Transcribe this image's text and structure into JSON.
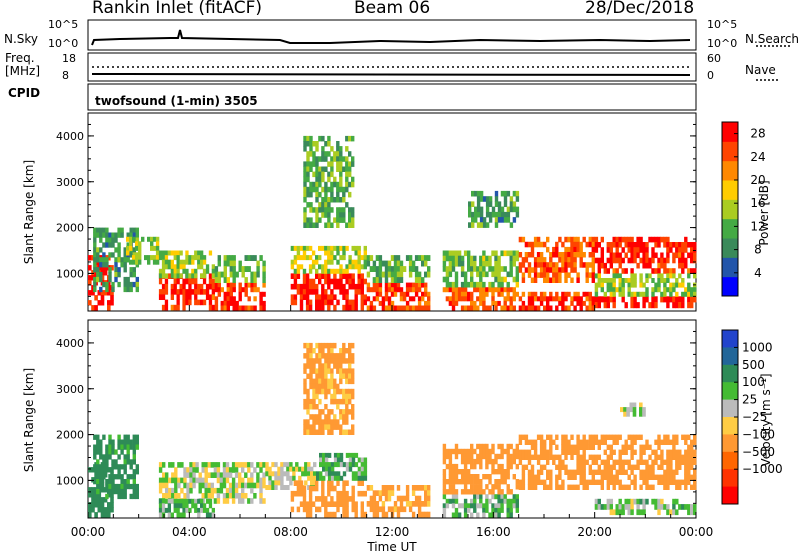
{
  "header": {
    "station": "Rankin Inlet (fitACF)",
    "beam": "Beam 06",
    "date": "28/Dec/2018"
  },
  "noise_panel": {
    "left_label": "N.Sky",
    "left_ticks": [
      "10^5",
      "10^0"
    ],
    "right_label": "N.Search",
    "right_ticks": [
      "10^5",
      "10^0"
    ]
  },
  "freq_panel": {
    "left_label_1": "Freq.",
    "left_label_2": "[MHz]",
    "left_ticks": [
      "18",
      "8"
    ],
    "right_label": "Nave",
    "right_ticks": [
      "60",
      "0"
    ]
  },
  "cpid": {
    "label": "CPID",
    "value": "twofsound (1-min) 3505"
  },
  "colors": {
    "power_scale": [
      "#0000ff",
      "#2255aa",
      "#3a8a5a",
      "#44aa44",
      "#aacc22",
      "#ffcc00",
      "#ff8800",
      "#ff4400",
      "#ff0000"
    ],
    "velocity_scale": [
      "#2244cc",
      "#226699",
      "#2e8b57",
      "#44bb33",
      "#bbbbbb",
      "#ffcc44",
      "#ff9933",
      "#ff6600",
      "#ff3300",
      "#ff0000"
    ]
  },
  "chart_data": [
    {
      "type": "heatmap",
      "name": "power",
      "ylabel": "Slant Range [km]",
      "ylim": [
        180,
        4500
      ],
      "y_ticks": [
        "1000",
        "2000",
        "3000",
        "4000"
      ],
      "colorbar_label": "Power [dB]",
      "colorbar_ticks": [
        "4",
        "8",
        "12",
        "16",
        "20",
        "24",
        "28"
      ],
      "colorbar_range": [
        0,
        30
      ],
      "xlim": [
        0,
        24
      ],
      "regions": [
        {
          "t": [
            0.0,
            1.0
          ],
          "r": [
            200,
            1400
          ],
          "v": 28
        },
        {
          "t": [
            0.2,
            2.0
          ],
          "r": [
            600,
            2000
          ],
          "v": 10
        },
        {
          "t": [
            1.5,
            2.8
          ],
          "r": [
            1200,
            1800
          ],
          "v": 14
        },
        {
          "t": [
            2.8,
            5.0
          ],
          "r": [
            200,
            1000
          ],
          "v": 27
        },
        {
          "t": [
            2.8,
            5.0
          ],
          "r": [
            900,
            1500
          ],
          "v": 14
        },
        {
          "t": [
            5.0,
            7.0
          ],
          "r": [
            200,
            800
          ],
          "v": 26
        },
        {
          "t": [
            5.0,
            7.0
          ],
          "r": [
            800,
            1400
          ],
          "v": 13
        },
        {
          "t": [
            8.0,
            11.0
          ],
          "r": [
            200,
            1000
          ],
          "v": 28
        },
        {
          "t": [
            8.0,
            11.0
          ],
          "r": [
            1000,
            1600
          ],
          "v": 16
        },
        {
          "t": [
            11.0,
            13.5
          ],
          "r": [
            200,
            800
          ],
          "v": 25
        },
        {
          "t": [
            11.0,
            13.5
          ],
          "r": [
            800,
            1400
          ],
          "v": 12
        },
        {
          "t": [
            14.0,
            17.0
          ],
          "r": [
            200,
            700
          ],
          "v": 24
        },
        {
          "t": [
            14.0,
            17.0
          ],
          "r": [
            700,
            1500
          ],
          "v": 13
        },
        {
          "t": [
            17.0,
            20.0
          ],
          "r": [
            800,
            1800
          ],
          "v": 24
        },
        {
          "t": [
            17.0,
            20.0
          ],
          "r": [
            200,
            600
          ],
          "v": 26
        },
        {
          "t": [
            20.0,
            24.0
          ],
          "r": [
            250,
            500
          ],
          "v": 28
        },
        {
          "t": [
            20.0,
            24.0
          ],
          "r": [
            1000,
            1800
          ],
          "v": 27
        },
        {
          "t": [
            20.0,
            24.0
          ],
          "r": [
            500,
            1000
          ],
          "v": 14
        },
        {
          "t": [
            8.5,
            10.5
          ],
          "r": [
            2000,
            4000
          ],
          "v": 12
        },
        {
          "t": [
            15.0,
            17.0
          ],
          "r": [
            2000,
            2800
          ],
          "v": 10
        }
      ]
    },
    {
      "type": "heatmap",
      "name": "velocity",
      "ylabel": "Slant Range [km]",
      "xlabel": "Time UT",
      "ylim": [
        180,
        4500
      ],
      "y_ticks": [
        "1000",
        "2000",
        "3000",
        "4000"
      ],
      "x_ticks": [
        "00:00",
        "04:00",
        "08:00",
        "12:00",
        "16:00",
        "20:00",
        "00:00"
      ],
      "colorbar_label": "Velocity [m s⁻¹]",
      "colorbar_ticks": [
        "1000",
        "500",
        "100",
        "25",
        "−25",
        "−100",
        "−500",
        "−1000"
      ],
      "xlim": [
        0,
        24
      ],
      "regions": [
        {
          "t": [
            0.0,
            1.0
          ],
          "r": [
            200,
            1400
          ],
          "v": 200
        },
        {
          "t": [
            0.2,
            2.0
          ],
          "r": [
            600,
            2000
          ],
          "v": 150
        },
        {
          "t": [
            2.8,
            7.0
          ],
          "r": [
            500,
            1400
          ],
          "v": 0
        },
        {
          "t": [
            2.8,
            5.0
          ],
          "r": [
            200,
            600
          ],
          "v": 60
        },
        {
          "t": [
            7.0,
            9.0
          ],
          "r": [
            800,
            1400
          ],
          "v": 0
        },
        {
          "t": [
            8.0,
            11.0
          ],
          "r": [
            200,
            1000
          ],
          "v": -200
        },
        {
          "t": [
            9.0,
            11.0
          ],
          "r": [
            1000,
            1600
          ],
          "v": 80
        },
        {
          "t": [
            11.0,
            13.5
          ],
          "r": [
            200,
            900
          ],
          "v": -150
        },
        {
          "t": [
            14.0,
            17.0
          ],
          "r": [
            200,
            700
          ],
          "v": 60
        },
        {
          "t": [
            14.0,
            17.0
          ],
          "r": [
            700,
            1800
          ],
          "v": -300
        },
        {
          "t": [
            17.0,
            20.0
          ],
          "r": [
            800,
            2000
          ],
          "v": -250
        },
        {
          "t": [
            20.0,
            24.0
          ],
          "r": [
            250,
            600
          ],
          "v": 40
        },
        {
          "t": [
            20.0,
            24.0
          ],
          "r": [
            800,
            2000
          ],
          "v": -250
        },
        {
          "t": [
            21.0,
            22.0
          ],
          "r": [
            2400,
            2700
          ],
          "v": 0
        },
        {
          "t": [
            8.5,
            10.5
          ],
          "r": [
            2000,
            4000
          ],
          "v": -150
        }
      ]
    }
  ]
}
